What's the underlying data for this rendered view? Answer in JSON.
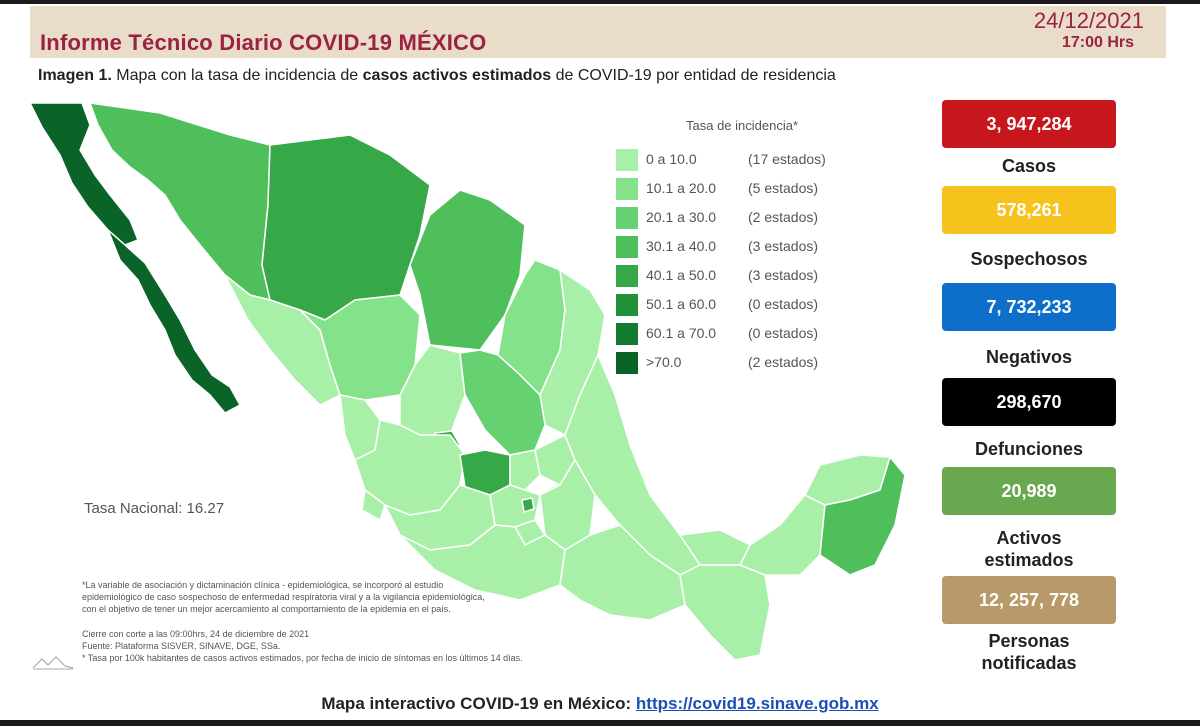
{
  "header": {
    "title": "Informe Técnico Diario COVID-19 MÉXICO",
    "date": "24/12/2021",
    "time": "17:00 Hrs"
  },
  "subtitle": {
    "prefix": "Imagen 1.",
    "text_before": " Mapa con la tasa de incidencia de ",
    "bold": "casos activos estimados",
    "text_after": " de COVID-19 por entidad de residencia"
  },
  "legend": {
    "title": "Tasa de incidencia*",
    "items": [
      {
        "range": "0   a  10.0",
        "count": "(17 estados)",
        "color": "#a8f0a8"
      },
      {
        "range": "10.1 a  20.0",
        "count": "(5 estados)",
        "color": "#84e38a"
      },
      {
        "range": "20.1 a  30.0",
        "count": "(2 estados)",
        "color": "#66d170"
      },
      {
        "range": "30.1 a  40.0",
        "count": "(3 estados)",
        "color": "#4fbf5c"
      },
      {
        "range": "40.1 a  50.0",
        "count": "(3 estados)",
        "color": "#37a848"
      },
      {
        "range": "50.1 a  60.0",
        "count": "(0 estados)",
        "color": "#21913a"
      },
      {
        "range": "60.1 a  70.0",
        "count": "(0 estados)",
        "color": "#147a2e"
      },
      {
        "range": ">70.0",
        "count": "(2 estados)",
        "color": "#0b6427"
      }
    ]
  },
  "tasa_nacional": "Tasa Nacional: 16.27",
  "footnotes": [
    "*La variable de asociación y dictaminación clínica - epidemiológica, se incorporó al estudio",
    "epidemiológico de caso sospechoso de enfermedad respiratoria viral y a la vigilancia epidemiológica,",
    "con el objetivo de tener un mejor acercamiento al comportamiento de la epidemia en el país.",
    "Cierre con corte a las 09:00hrs, 24 de diciembre de 2021",
    "Fuente: Plataforma SISVER, SINAVE, DGE, SSa.",
    "* Tasa por 100k habitantes de casos activos estimados, por fecha de inicio de síntomas en los últimos 14 días."
  ],
  "stats": [
    {
      "value": "3, 947,284",
      "label": "Casos",
      "color": "#c8161d"
    },
    {
      "value": "578,261",
      "label": "Sospechosos",
      "color": "#f6c21c"
    },
    {
      "value": "7, 732,233",
      "label": "Negativos",
      "color": "#0d6fc9"
    },
    {
      "value": "298,670",
      "label": "Defunciones",
      "color": "#000000"
    },
    {
      "value": "20,989",
      "label": "Activos estimados",
      "label_line1": "Activos",
      "label_line2": "estimados",
      "color": "#6aa84f"
    },
    {
      "value": "12, 257, 778",
      "label": "Personas notificadas",
      "label_line1": "Personas",
      "label_line2": "notificadas",
      "color": "#b89a6a"
    }
  ],
  "bottom": {
    "text": "Mapa interactivo COVID-19 en México: ",
    "link": "https://covid19.sinave.gob.mx"
  },
  "map_colors": {
    "lightest": "#a8f0a8",
    "light": "#84e38a",
    "mid": "#66d170",
    "mid_dark": "#4fbf5c",
    "dark": "#37a848",
    "darkest": "#0b6427",
    "border": "#ffffff"
  }
}
